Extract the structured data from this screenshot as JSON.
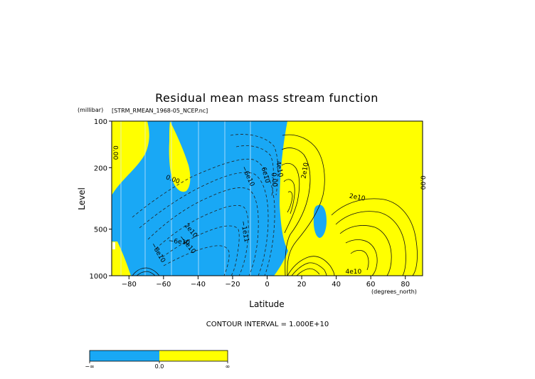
{
  "chart_data": {
    "type": "contour",
    "title": "Residual mean mass stream function",
    "subtitle": "[STRM_RMEAN_1968-05_NCEP.nc]",
    "xlabel": "Latitude",
    "xunit": "(degrees_north)",
    "ylabel": "Level",
    "yunit": "(millibar)",
    "xlim": [
      -90,
      90
    ],
    "ylim": [
      1000,
      100
    ],
    "y_scale": "log",
    "x_ticks": [
      -80,
      -60,
      -40,
      -20,
      0,
      20,
      40,
      60,
      80
    ],
    "x_tick_labels": [
      "−80",
      "−60",
      "−40",
      "−20",
      "0",
      "20",
      "40",
      "60",
      "80"
    ],
    "y_ticks": [
      100,
      200,
      500,
      1000
    ],
    "y_tick_labels": [
      "100",
      "200",
      "500",
      "1000"
    ],
    "contour_interval": "CONTOUR INTERVAL = 1.000E+10",
    "contour_labels": [
      {
        "text": "0.00",
        "lat": -89,
        "lev": 160,
        "rotate": 90
      },
      {
        "text": "0.00",
        "lat": -55,
        "lev": 245,
        "rotate": 20
      },
      {
        "text": "−6e10",
        "lat": -12,
        "lev": 230,
        "rotate": 65
      },
      {
        "text": "6e10",
        "lat": -2,
        "lev": 225,
        "rotate": 75
      },
      {
        "text": "4e10",
        "lat": 6,
        "lev": 205,
        "rotate": 80
      },
      {
        "text": "0.00",
        "lat": 3,
        "lev": 240,
        "rotate": 85
      },
      {
        "text": "2e10",
        "lat": 23,
        "lev": 210,
        "rotate": -80
      },
      {
        "text": "2e10",
        "lat": 52,
        "lev": 320,
        "rotate": 10
      },
      {
        "text": "2e10",
        "lat": -45,
        "lev": 520,
        "rotate": 50
      },
      {
        "text": "−1e11",
        "lat": -14,
        "lev": 520,
        "rotate": 80
      },
      {
        "text": "−6e10",
        "lat": -51,
        "lev": 620,
        "rotate": 5
      },
      {
        "text": "−4e10",
        "lat": -47,
        "lev": 640,
        "rotate": 50
      },
      {
        "text": "−8e10",
        "lat": -64,
        "lev": 720,
        "rotate": 60
      },
      {
        "text": "4e10",
        "lat": 50,
        "lev": 970,
        "rotate": 0
      },
      {
        "text": "0.00",
        "lat": 89,
        "lev": 250,
        "rotate": 90
      }
    ],
    "fill_levels": [
      {
        "range": "negative",
        "color": "#19a8f5"
      },
      {
        "range": "positive",
        "color": "#ffff00"
      }
    ],
    "colorbar": {
      "labels": [
        "−∞",
        "0.0",
        "∞"
      ],
      "colors": [
        "#19a8f5",
        "#ffff00"
      ]
    }
  }
}
